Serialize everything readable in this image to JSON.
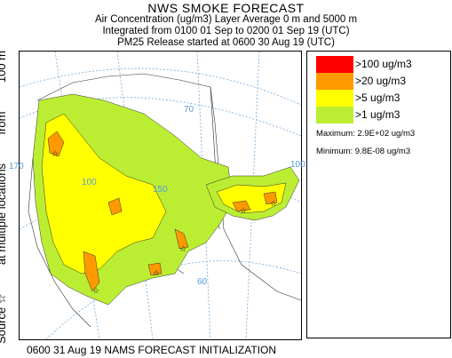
{
  "titles": {
    "main": "NWS SMOKE FORECAST",
    "line1": "Air Concentration (ug/m3) Layer Average    0 m and  5000 m",
    "line2": "Integrated from 0100 01 Sep to 0200 01 Sep 19 (UTC)",
    "line3": "PM25 Release started at 0600 30 Aug 19 (UTC)"
  },
  "side_label": {
    "source": "Source ☆",
    "locations": "at multiple locations",
    "from": "from",
    "height": "100 m"
  },
  "legend": {
    "items": [
      {
        "label": ">100 ug/m3",
        "color": "#ff0000"
      },
      {
        "label": ">20 ug/m3",
        "color": "#ff9900"
      },
      {
        "label": ">5 ug/m3",
        "color": "#ffff00"
      },
      {
        "label": ">1 ug/m3",
        "color": "#bbee33"
      }
    ],
    "maximum": "Maximum: 2.9E+02 ug/m3",
    "minimum": "Minimum: 9.8E-08 ug/m3"
  },
  "map": {
    "grid_labels": [
      "70",
      "100",
      "150",
      "100",
      "60",
      "170"
    ]
  },
  "footer": "0600 31 Aug 19 NAMS FORECAST INITIALIZATION"
}
